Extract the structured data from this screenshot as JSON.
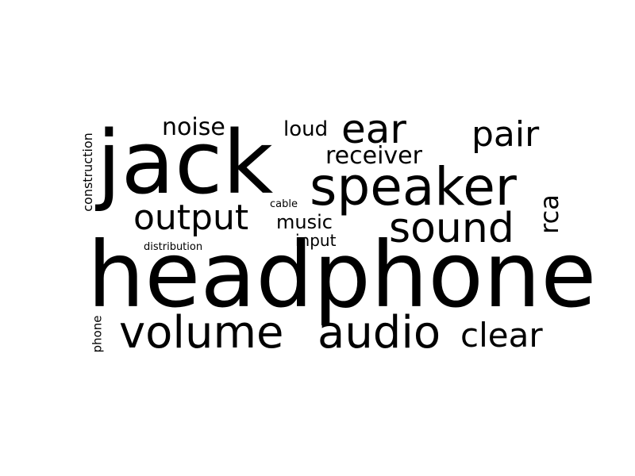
{
  "words": {
    "headphone": "headphone",
    "jack": "jack",
    "speaker": "speaker",
    "volume": "volume",
    "audio": "audio",
    "clear": "clear",
    "sound": "sound",
    "output": "output",
    "ear": "ear",
    "pair": "pair",
    "noise": "noise",
    "loud": "loud",
    "receiver": "receiver",
    "music": "music",
    "input": "input",
    "cable": "cable",
    "distribution": "distribution",
    "rca": "rca",
    "construction": "construction",
    "phone": "phone"
  },
  "colors": {
    "background": "#ffffff",
    "text": "#000000"
  }
}
